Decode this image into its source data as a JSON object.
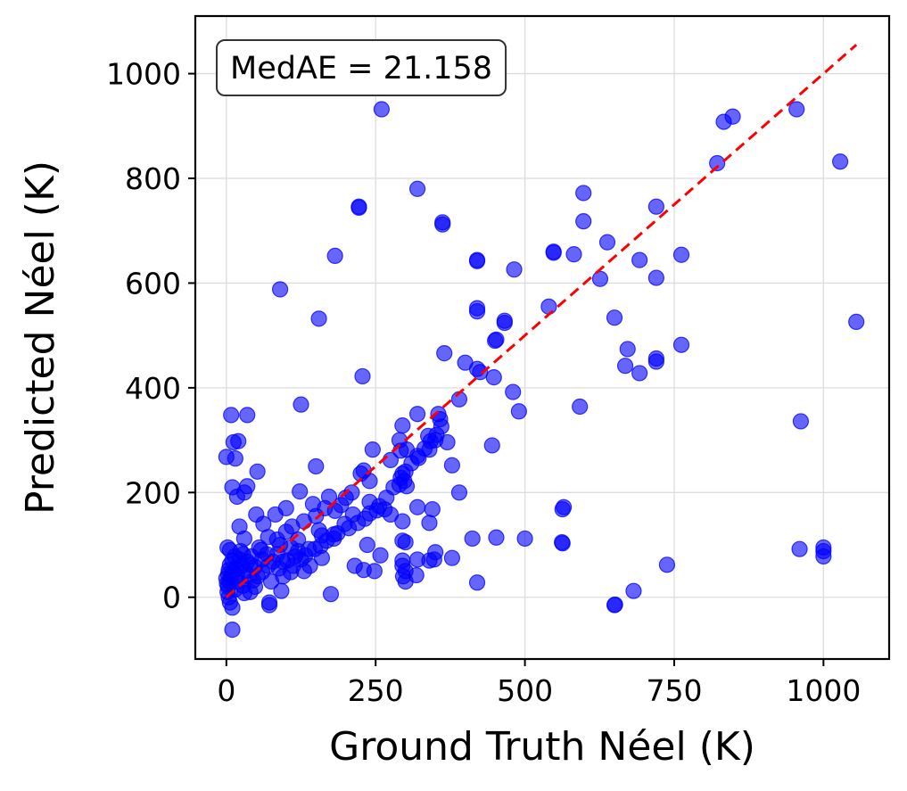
{
  "chart_data": {
    "type": "scatter",
    "title": "",
    "xlabel": "Ground Truth Néel (K)",
    "ylabel": "Predicted Néel (K)",
    "xlim": [
      -52,
      1110
    ],
    "ylim": [
      -118,
      1110
    ],
    "xticks": [
      0,
      250,
      500,
      750,
      1000
    ],
    "yticks": [
      0,
      200,
      400,
      600,
      800,
      1000
    ],
    "grid": true,
    "annotation": "MedAE = 21.158",
    "annotation_position": "top-left",
    "marker_color": "#0000ff",
    "marker_alpha": 0.6,
    "reference_line": {
      "style": "dashed",
      "color": "#ff0000",
      "from": [
        0,
        0
      ],
      "to": [
        1055,
        1055
      ]
    },
    "points": [
      [
        260,
        932
      ],
      [
        833,
        908
      ],
      [
        848,
        918
      ],
      [
        955,
        932
      ],
      [
        822,
        829
      ],
      [
        1028,
        832
      ],
      [
        320,
        780
      ],
      [
        222,
        746
      ],
      [
        222,
        744
      ],
      [
        598,
        772
      ],
      [
        720,
        746
      ],
      [
        362,
        716
      ],
      [
        362,
        712
      ],
      [
        598,
        718
      ],
      [
        182,
        652
      ],
      [
        548,
        660
      ],
      [
        548,
        658
      ],
      [
        582,
        655
      ],
      [
        638,
        678
      ],
      [
        692,
        644
      ],
      [
        762,
        654
      ],
      [
        420,
        642
      ],
      [
        420,
        644
      ],
      [
        482,
        626
      ],
      [
        626,
        608
      ],
      [
        720,
        610
      ],
      [
        90,
        588
      ],
      [
        540,
        555
      ],
      [
        420,
        552
      ],
      [
        420,
        546
      ],
      [
        466,
        528
      ],
      [
        466,
        524
      ],
      [
        650,
        534
      ],
      [
        155,
        532
      ],
      [
        1055,
        526
      ],
      [
        450,
        490
      ],
      [
        452,
        492
      ],
      [
        672,
        474
      ],
      [
        762,
        482
      ],
      [
        720,
        456
      ],
      [
        720,
        450
      ],
      [
        692,
        428
      ],
      [
        668,
        442
      ],
      [
        365,
        466
      ],
      [
        400,
        448
      ],
      [
        420,
        436
      ],
      [
        425,
        430
      ],
      [
        448,
        420
      ],
      [
        228,
        422
      ],
      [
        480,
        392
      ],
      [
        390,
        378
      ],
      [
        490,
        355
      ],
      [
        592,
        364
      ],
      [
        125,
        368
      ],
      [
        8,
        348
      ],
      [
        35,
        348
      ],
      [
        320,
        350
      ],
      [
        355,
        350
      ],
      [
        358,
        340
      ],
      [
        295,
        328
      ],
      [
        338,
        308
      ],
      [
        350,
        300
      ],
      [
        290,
        300
      ],
      [
        445,
        290
      ],
      [
        20,
        298
      ],
      [
        12,
        296
      ],
      [
        370,
        296
      ],
      [
        340,
        282
      ],
      [
        245,
        282
      ],
      [
        292,
        280
      ],
      [
        302,
        282
      ],
      [
        322,
        266
      ],
      [
        275,
        262
      ],
      [
        15,
        265
      ],
      [
        0,
        268
      ],
      [
        150,
        250
      ],
      [
        378,
        252
      ],
      [
        230,
        242
      ],
      [
        52,
        240
      ],
      [
        225,
        236
      ],
      [
        295,
        236
      ],
      [
        298,
        222
      ],
      [
        240,
        222
      ],
      [
        290,
        215
      ],
      [
        35,
        212
      ],
      [
        302,
        212
      ],
      [
        10,
        210
      ],
      [
        18,
        192
      ],
      [
        30,
        200
      ],
      [
        390,
        200
      ],
      [
        123,
        202
      ],
      [
        172,
        192
      ],
      [
        192,
        176
      ],
      [
        240,
        182
      ],
      [
        252,
        166
      ],
      [
        320,
        172
      ],
      [
        345,
        168
      ],
      [
        275,
        158
      ],
      [
        265,
        168
      ],
      [
        565,
        172
      ],
      [
        563,
        168
      ],
      [
        145,
        178
      ],
      [
        100,
        170
      ],
      [
        182,
        165
      ],
      [
        212,
        158
      ],
      [
        82,
        158
      ],
      [
        50,
        158
      ],
      [
        295,
        145
      ],
      [
        340,
        142
      ],
      [
        198,
        140
      ],
      [
        155,
        128
      ],
      [
        180,
        120
      ],
      [
        120,
        110
      ],
      [
        90,
        100
      ],
      [
        70,
        115
      ],
      [
        108,
        95
      ],
      [
        115,
        78
      ],
      [
        95,
        68
      ],
      [
        60,
        72
      ],
      [
        40,
        62
      ],
      [
        25,
        60
      ],
      [
        16,
        55
      ],
      [
        12,
        48
      ],
      [
        8,
        40
      ],
      [
        5,
        30
      ],
      [
        3,
        20
      ],
      [
        2,
        10
      ],
      [
        4,
        0
      ],
      [
        6,
        -10
      ],
      [
        10,
        -20
      ],
      [
        2,
        95
      ],
      [
        6,
        90
      ],
      [
        28,
        82
      ],
      [
        30,
        112
      ],
      [
        22,
        135
      ],
      [
        62,
        140
      ],
      [
        140,
        60
      ],
      [
        160,
        75
      ],
      [
        160,
        118
      ],
      [
        180,
        112
      ],
      [
        130,
        50
      ],
      [
        108,
        48
      ],
      [
        95,
        40
      ],
      [
        75,
        30
      ],
      [
        48,
        20
      ],
      [
        30,
        8
      ],
      [
        72,
        -10
      ],
      [
        72,
        -15
      ],
      [
        92,
        12
      ],
      [
        175,
        6
      ],
      [
        230,
        52
      ],
      [
        248,
        50
      ],
      [
        215,
        60
      ],
      [
        236,
        100
      ],
      [
        258,
        80
      ],
      [
        295,
        70
      ],
      [
        295,
        60
      ],
      [
        296,
        40
      ],
      [
        300,
        105
      ],
      [
        295,
        108
      ],
      [
        300,
        30
      ],
      [
        300,
        50
      ],
      [
        318,
        42
      ],
      [
        320,
        72
      ],
      [
        340,
        70
      ],
      [
        348,
        72
      ],
      [
        350,
        86
      ],
      [
        378,
        75
      ],
      [
        412,
        112
      ],
      [
        420,
        28
      ],
      [
        452,
        114
      ],
      [
        500,
        112
      ],
      [
        562,
        105
      ],
      [
        563,
        103
      ],
      [
        650,
        -15
      ],
      [
        651,
        -14
      ],
      [
        682,
        12
      ],
      [
        738,
        62
      ],
      [
        960,
        92
      ],
      [
        1000,
        95
      ],
      [
        1000,
        88
      ],
      [
        1000,
        78
      ],
      [
        962,
        336
      ],
      [
        10,
        -62
      ],
      [
        55,
        95
      ],
      [
        85,
        82
      ],
      [
        120,
        88
      ],
      [
        138,
        92
      ],
      [
        45,
        32
      ],
      [
        60,
        48
      ],
      [
        38,
        40
      ],
      [
        20,
        30
      ],
      [
        15,
        15
      ],
      [
        70,
        60
      ],
      [
        52,
        40
      ],
      [
        68,
        82
      ],
      [
        85,
        110
      ],
      [
        100,
        125
      ],
      [
        110,
        135
      ],
      [
        130,
        145
      ],
      [
        150,
        155
      ],
      [
        165,
        170
      ],
      [
        200,
        190
      ],
      [
        210,
        200
      ],
      [
        22,
        72
      ],
      [
        35,
        68
      ],
      [
        48,
        58
      ],
      [
        18,
        42
      ],
      [
        28,
        22
      ],
      [
        40,
        10
      ],
      [
        88,
        55
      ],
      [
        102,
        70
      ],
      [
        112,
        60
      ],
      [
        125,
        72
      ],
      [
        132,
        80
      ],
      [
        148,
        92
      ],
      [
        158,
        98
      ],
      [
        168,
        108
      ],
      [
        186,
        122
      ],
      [
        205,
        132
      ],
      [
        220,
        142
      ],
      [
        232,
        150
      ],
      [
        240,
        160
      ],
      [
        256,
        174
      ],
      [
        268,
        190
      ],
      [
        280,
        210
      ],
      [
        292,
        228
      ],
      [
        300,
        240
      ],
      [
        310,
        256
      ],
      [
        320,
        270
      ],
      [
        332,
        284
      ],
      [
        342,
        298
      ],
      [
        352,
        310
      ],
      [
        360,
        326
      ],
      [
        14,
        78
      ],
      [
        24,
        88
      ],
      [
        32,
        50
      ],
      [
        42,
        78
      ],
      [
        58,
        90
      ],
      [
        78,
        68
      ],
      [
        6,
        62
      ],
      [
        10,
        70
      ],
      [
        4,
        52
      ],
      [
        0,
        36
      ],
      [
        1,
        26
      ],
      [
        3,
        44
      ]
    ]
  }
}
